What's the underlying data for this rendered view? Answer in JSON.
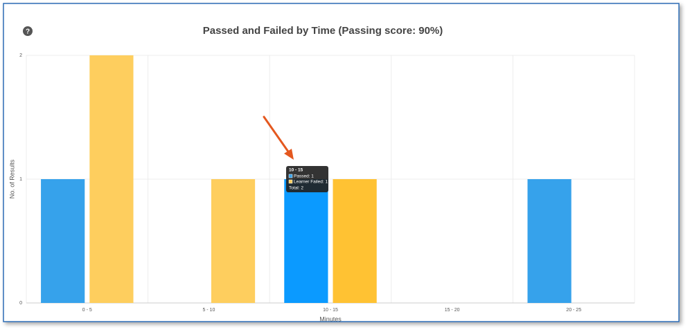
{
  "chart_data": {
    "type": "bar",
    "title": "Passed and Failed by Time (Passing score: 90%)",
    "help_icon": "?",
    "x_label": "Minutes",
    "y_label": "No. of Results",
    "categories": [
      "0 - 5",
      "5 - 10",
      "10 - 15",
      "15 - 20",
      "20 - 25"
    ],
    "series": [
      {
        "name": "Passed",
        "colors": [
          "#36a2eb",
          "#36a2eb",
          "#0b9aff",
          "#36a2eb",
          "#36a2eb"
        ],
        "values": [
          1,
          0,
          1,
          0,
          1
        ]
      },
      {
        "name": "Learner Failed",
        "colors": [
          "#fece5e",
          "#fece5e",
          "#ffc233",
          "#fece5e",
          "#fece5e"
        ],
        "values": [
          2,
          1,
          1,
          0,
          0
        ]
      }
    ],
    "ylim": [
      0,
      2
    ],
    "yticks": [
      0,
      1,
      2
    ],
    "grid": true,
    "tooltip": {
      "title": "10 - 15",
      "lines": [
        "Passed: 1",
        "Learner Failed: 1"
      ],
      "total": "Total: 2"
    }
  }
}
